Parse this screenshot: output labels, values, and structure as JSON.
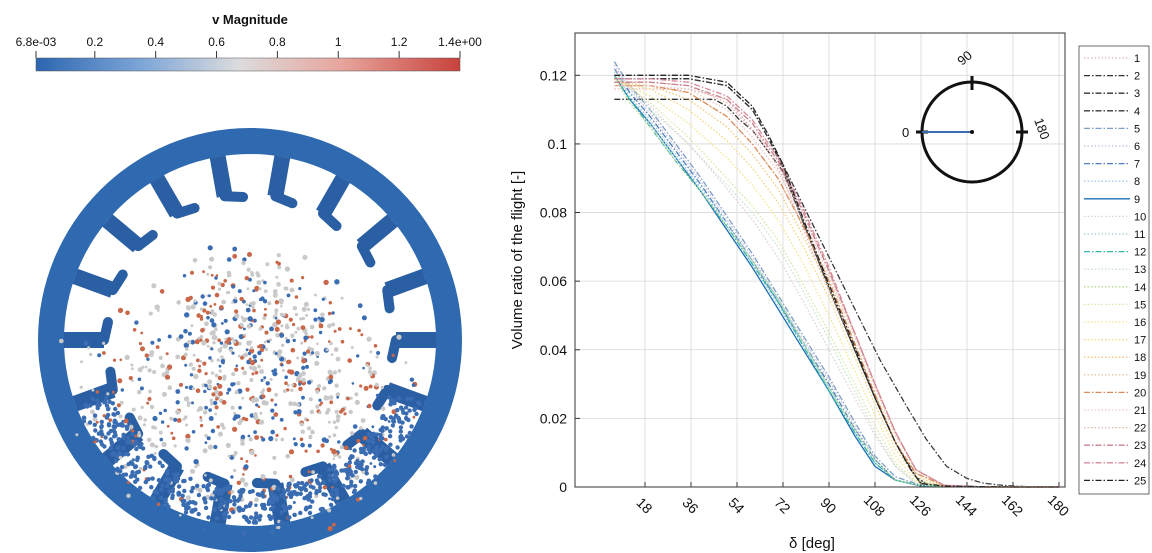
{
  "colorbar": {
    "title": "v Magnitude",
    "tick_labels": [
      "6.8e-03",
      "0.2",
      "0.4",
      "0.6",
      "0.8",
      "1",
      "1.2",
      "1.4e+00"
    ],
    "min": 0.0068,
    "max": 1.4
  },
  "particle_view": {
    "description_colors": {
      "drum": "#2f69b0",
      "slow": "#3b6db3",
      "mid": "#c9c9c9",
      "fast": "#c8674a"
    }
  },
  "chart_data": {
    "type": "line",
    "xlabel": "δ [deg]",
    "ylabel": "Volume  ratio  of the flight [-]",
    "xlim": [
      0,
      180
    ],
    "ylim": [
      0,
      0.13
    ],
    "x_ticks": [
      18,
      36,
      54,
      72,
      90,
      108,
      126,
      144,
      162,
      180
    ],
    "y_ticks": [
      0,
      0.02,
      0.04,
      0.06,
      0.08,
      0.1,
      0.12
    ],
    "y_tick_labels": [
      "0",
      "0.02",
      "0.04",
      "0.06",
      "0.08",
      "0.1",
      "0.12"
    ],
    "grid": true,
    "inset": {
      "labels": [
        "0",
        "90",
        "180"
      ]
    },
    "legend": {
      "placement": "outside-right",
      "entries": [
        "1",
        "2",
        "3",
        "4",
        "5",
        "6",
        "7",
        "8",
        "9",
        "10",
        "11",
        "12",
        "13",
        "14",
        "15",
        "16",
        "17",
        "18",
        "19",
        "20",
        "21",
        "22",
        "23",
        "24",
        "25"
      ]
    },
    "series": [
      {
        "color": "#e7b1b6",
        "dash": "dotted",
        "x": [
          6,
          20,
          35,
          50,
          65,
          72,
          80,
          90,
          100,
          108,
          116,
          122,
          126,
          135,
          150,
          165,
          180
        ],
        "y": [
          0.116,
          0.116,
          0.116,
          0.113,
          0.1,
          0.09,
          0.075,
          0.057,
          0.04,
          0.026,
          0.013,
          0.005,
          0.001,
          0.0003,
          0.0001,
          0,
          0
        ]
      },
      {
        "color": "#333333",
        "dash": "dashdot",
        "x": [
          6,
          20,
          35,
          50,
          60,
          66,
          72,
          80,
          90,
          100,
          108,
          116,
          122,
          126,
          135,
          150,
          165,
          180
        ],
        "y": [
          0.119,
          0.119,
          0.119,
          0.117,
          0.11,
          0.102,
          0.093,
          0.077,
          0.058,
          0.04,
          0.026,
          0.013,
          0.005,
          0.001,
          0.0003,
          0.0001,
          0,
          0
        ]
      },
      {
        "color": "#333333",
        "dash": "dashdot",
        "x": [
          6,
          20,
          35,
          45,
          50,
          55,
          60,
          66,
          72,
          80,
          90,
          100,
          108,
          116,
          124,
          128,
          135,
          150,
          165,
          180
        ],
        "y": [
          0.113,
          0.113,
          0.113,
          0.113,
          0.111,
          0.107,
          0.104,
          0.098,
          0.092,
          0.077,
          0.058,
          0.04,
          0.026,
          0.013,
          0.003,
          0.001,
          0.0003,
          0.0001,
          0,
          0
        ]
      },
      {
        "color": "#3a3a3a",
        "dash": "dashdot",
        "x": [
          6,
          20,
          35,
          50,
          60,
          66,
          72,
          80,
          90,
          100,
          110,
          120,
          128,
          136,
          144,
          150,
          156,
          162,
          168,
          174,
          180
        ],
        "y": [
          0.119,
          0.119,
          0.119,
          0.117,
          0.11,
          0.102,
          0.094,
          0.082,
          0.067,
          0.052,
          0.037,
          0.024,
          0.014,
          0.006,
          0.0025,
          0.0012,
          0.0006,
          0.0003,
          0.0001,
          0,
          0
        ]
      },
      {
        "color": "#7f9fc6",
        "dash": "dashdot",
        "x": [
          6,
          12,
          20,
          30,
          40,
          50,
          60,
          70,
          80,
          90,
          100,
          108,
          116,
          126,
          135,
          150,
          165,
          180
        ],
        "y": [
          0.124,
          0.117,
          0.11,
          0.1,
          0.09,
          0.079,
          0.068,
          0.056,
          0.044,
          0.032,
          0.019,
          0.009,
          0.003,
          0.0005,
          0.0002,
          0,
          0,
          0
        ]
      },
      {
        "color": "#c7bde0",
        "dash": "dotted",
        "x": [
          6,
          12,
          20,
          30,
          40,
          50,
          60,
          70,
          80,
          90,
          100,
          108,
          116,
          126,
          135,
          150,
          165,
          180
        ],
        "y": [
          0.123,
          0.116,
          0.109,
          0.099,
          0.089,
          0.078,
          0.067,
          0.055,
          0.043,
          0.031,
          0.018,
          0.008,
          0.002,
          0.0004,
          0.0002,
          0,
          0,
          0
        ]
      },
      {
        "color": "#4c7fbf",
        "dash": "dashdot",
        "x": [
          6,
          12,
          20,
          30,
          40,
          50,
          60,
          70,
          80,
          90,
          100,
          108,
          116,
          126,
          135,
          150,
          165,
          180
        ],
        "y": [
          0.122,
          0.115,
          0.108,
          0.098,
          0.088,
          0.077,
          0.066,
          0.054,
          0.042,
          0.03,
          0.017,
          0.008,
          0.002,
          0.0004,
          0.0002,
          0,
          0,
          0
        ]
      },
      {
        "color": "#a7c9e6",
        "dash": "dotted",
        "x": [
          6,
          12,
          20,
          30,
          40,
          50,
          60,
          70,
          80,
          90,
          100,
          108,
          116,
          126,
          135,
          150,
          165,
          180
        ],
        "y": [
          0.121,
          0.114,
          0.107,
          0.097,
          0.087,
          0.076,
          0.065,
          0.053,
          0.041,
          0.029,
          0.016,
          0.007,
          0.002,
          0.0004,
          0.0002,
          0,
          0,
          0
        ]
      },
      {
        "color": "#1f6fb5",
        "dash": "solid",
        "x": [
          6,
          12,
          20,
          30,
          40,
          50,
          60,
          70,
          80,
          90,
          100,
          108,
          116,
          126,
          135,
          150,
          165,
          180
        ],
        "y": [
          0.12,
          0.113,
          0.106,
          0.096,
          0.086,
          0.075,
          0.064,
          0.052,
          0.04,
          0.028,
          0.015,
          0.006,
          0.002,
          0.0003,
          0.0001,
          0,
          0,
          0
        ]
      },
      {
        "color": "#e0cfd9",
        "dash": "dotted",
        "x": [
          6,
          20,
          35,
          50,
          60,
          70,
          80,
          90,
          100,
          108,
          116,
          124,
          135,
          150,
          165,
          180
        ],
        "y": [
          0.122,
          0.111,
          0.1,
          0.087,
          0.078,
          0.067,
          0.054,
          0.04,
          0.026,
          0.015,
          0.006,
          0.001,
          0.0002,
          0,
          0,
          0
        ]
      },
      {
        "color": "#9ad1d4",
        "dash": "dotted",
        "x": [
          6,
          12,
          20,
          30,
          40,
          50,
          60,
          70,
          80,
          90,
          100,
          108,
          116,
          126,
          135,
          150,
          165,
          180
        ],
        "y": [
          0.121,
          0.114,
          0.106,
          0.096,
          0.087,
          0.077,
          0.066,
          0.055,
          0.042,
          0.029,
          0.016,
          0.007,
          0.002,
          0.0004,
          0.0002,
          0,
          0,
          0
        ]
      },
      {
        "color": "#37b5a8",
        "dash": "dashdot",
        "x": [
          6,
          12,
          20,
          30,
          40,
          50,
          60,
          70,
          80,
          90,
          100,
          108,
          116,
          126,
          135,
          150,
          165,
          180
        ],
        "y": [
          0.12,
          0.113,
          0.105,
          0.095,
          0.086,
          0.076,
          0.065,
          0.054,
          0.041,
          0.028,
          0.016,
          0.007,
          0.002,
          0.0004,
          0.0002,
          0,
          0,
          0
        ]
      },
      {
        "color": "#c7e3cf",
        "dash": "dotted",
        "x": [
          6,
          20,
          35,
          50,
          60,
          70,
          80,
          90,
          100,
          108,
          116,
          124,
          135,
          150,
          165,
          180
        ],
        "y": [
          0.121,
          0.11,
          0.1,
          0.088,
          0.08,
          0.07,
          0.057,
          0.043,
          0.028,
          0.016,
          0.006,
          0.001,
          0.0002,
          0,
          0,
          0
        ]
      },
      {
        "color": "#b8d98f",
        "dash": "dotted",
        "x": [
          6,
          12,
          20,
          30,
          40,
          50,
          60,
          70,
          80,
          90,
          100,
          108,
          116,
          126,
          135,
          150,
          165,
          180
        ],
        "y": [
          0.119,
          0.112,
          0.105,
          0.095,
          0.086,
          0.076,
          0.066,
          0.055,
          0.042,
          0.029,
          0.017,
          0.008,
          0.002,
          0.0004,
          0.0002,
          0,
          0,
          0
        ]
      },
      {
        "color": "#d7e6a6",
        "dash": "dotted",
        "x": [
          6,
          20,
          35,
          50,
          60,
          70,
          80,
          90,
          100,
          108,
          116,
          124,
          135,
          150,
          165,
          180
        ],
        "y": [
          0.12,
          0.112,
          0.102,
          0.09,
          0.082,
          0.072,
          0.059,
          0.045,
          0.03,
          0.018,
          0.007,
          0.0015,
          0.0002,
          0,
          0,
          0
        ]
      },
      {
        "color": "#f0e68a",
        "dash": "dotted",
        "x": [
          6,
          20,
          35,
          50,
          60,
          70,
          80,
          90,
          100,
          108,
          116,
          124,
          135,
          150,
          165,
          180
        ],
        "y": [
          0.119,
          0.114,
          0.106,
          0.096,
          0.088,
          0.078,
          0.065,
          0.05,
          0.034,
          0.021,
          0.009,
          0.002,
          0.0003,
          0,
          0,
          0
        ]
      },
      {
        "color": "#f3d77a",
        "dash": "dotted",
        "x": [
          6,
          20,
          35,
          50,
          60,
          70,
          80,
          90,
          100,
          108,
          116,
          124,
          135,
          150,
          165,
          180
        ],
        "y": [
          0.118,
          0.116,
          0.11,
          0.101,
          0.093,
          0.083,
          0.07,
          0.055,
          0.038,
          0.024,
          0.011,
          0.003,
          0.0003,
          0,
          0,
          0
        ]
      },
      {
        "color": "#f2c879",
        "dash": "dotted",
        "x": [
          6,
          20,
          35,
          50,
          60,
          70,
          80,
          90,
          100,
          108,
          116,
          124,
          135,
          150,
          165,
          180
        ],
        "y": [
          0.118,
          0.117,
          0.113,
          0.105,
          0.097,
          0.087,
          0.073,
          0.058,
          0.041,
          0.027,
          0.013,
          0.004,
          0.0004,
          0,
          0,
          0
        ]
      },
      {
        "color": "#ebc7a5",
        "dash": "dotted",
        "x": [
          6,
          20,
          35,
          50,
          60,
          70,
          80,
          90,
          100,
          108,
          116,
          124,
          135,
          150,
          165,
          180
        ],
        "y": [
          0.117,
          0.117,
          0.115,
          0.108,
          0.1,
          0.09,
          0.076,
          0.061,
          0.044,
          0.029,
          0.015,
          0.005,
          0.0005,
          0,
          0,
          0
        ]
      },
      {
        "color": "#d98b5c",
        "dash": "dashdot",
        "x": [
          6,
          20,
          35,
          50,
          60,
          70,
          80,
          90,
          100,
          108,
          116,
          124,
          135,
          150,
          165,
          180
        ],
        "y": [
          0.117,
          0.117,
          0.115,
          0.108,
          0.1,
          0.09,
          0.076,
          0.06,
          0.042,
          0.027,
          0.013,
          0.004,
          0.0004,
          0,
          0,
          0
        ]
      },
      {
        "color": "#efc6c6",
        "dash": "dotted",
        "x": [
          6,
          20,
          35,
          50,
          60,
          70,
          80,
          90,
          100,
          108,
          116,
          124,
          135,
          150,
          165,
          180
        ],
        "y": [
          0.117,
          0.117,
          0.116,
          0.11,
          0.102,
          0.092,
          0.078,
          0.062,
          0.045,
          0.03,
          0.016,
          0.005,
          0.0005,
          0,
          0,
          0
        ]
      },
      {
        "color": "#e5b7b0",
        "dash": "dotted",
        "x": [
          6,
          20,
          35,
          50,
          60,
          70,
          80,
          90,
          100,
          108,
          116,
          124,
          135,
          150,
          165,
          180
        ],
        "y": [
          0.118,
          0.118,
          0.117,
          0.112,
          0.104,
          0.094,
          0.079,
          0.063,
          0.045,
          0.03,
          0.016,
          0.005,
          0.0005,
          0,
          0,
          0
        ]
      },
      {
        "color": "#c9808a",
        "dash": "dashdot",
        "x": [
          6,
          20,
          35,
          50,
          60,
          70,
          80,
          90,
          100,
          108,
          116,
          124,
          135,
          150,
          165,
          180
        ],
        "y": [
          0.118,
          0.118,
          0.117,
          0.113,
          0.106,
          0.095,
          0.08,
          0.063,
          0.045,
          0.03,
          0.016,
          0.005,
          0.0005,
          0,
          0,
          0
        ]
      },
      {
        "color": "#d88a9a",
        "dash": "dashdot",
        "x": [
          6,
          20,
          35,
          50,
          60,
          70,
          80,
          90,
          100,
          108,
          116,
          124,
          135,
          150,
          165,
          180
        ],
        "y": [
          0.119,
          0.119,
          0.118,
          0.114,
          0.107,
          0.096,
          0.081,
          0.064,
          0.045,
          0.03,
          0.016,
          0.005,
          0.0005,
          0,
          0,
          0
        ]
      },
      {
        "color": "#222222",
        "dash": "dashdot",
        "x": [
          6,
          20,
          35,
          50,
          60,
          66,
          72,
          80,
          90,
          100,
          108,
          116,
          122,
          126,
          135,
          150,
          165,
          180
        ],
        "y": [
          0.12,
          0.12,
          0.12,
          0.118,
          0.111,
          0.103,
          0.094,
          0.078,
          0.059,
          0.041,
          0.026,
          0.013,
          0.005,
          0.001,
          0.0003,
          0.0001,
          0,
          0
        ]
      }
    ]
  }
}
